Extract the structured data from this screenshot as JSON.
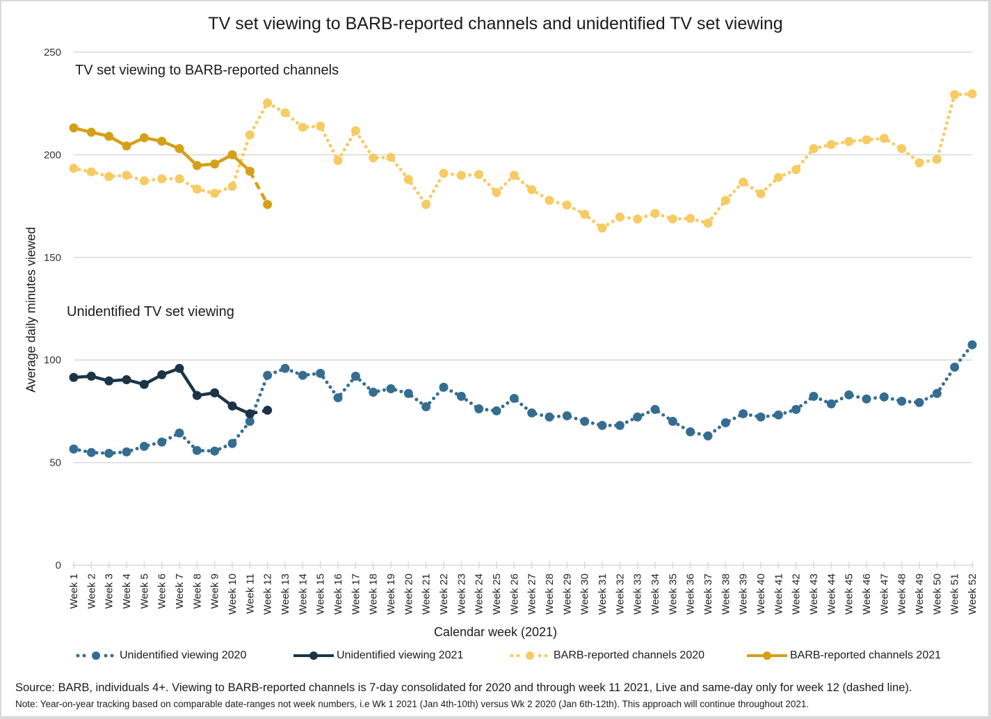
{
  "chart_data": {
    "type": "line",
    "title": "TV set viewing to BARB-reported channels and unidentified TV set viewing",
    "xlabel": "Calendar week (2021)",
    "ylabel": "Average daily minutes viewed",
    "ylim": [
      0,
      250
    ],
    "yticks": [
      0,
      50,
      100,
      150,
      200,
      250
    ],
    "grid": true,
    "legend_position": "bottom",
    "annotations": [
      {
        "text": "TV set viewing to BARB-reported channels",
        "near": "top-left"
      },
      {
        "text": "Unidentified TV set viewing",
        "near": "middle-left"
      }
    ],
    "categories": [
      "Week 1",
      "Week 2",
      "Week 3",
      "Week 4",
      "Week 5",
      "Week 6",
      "Week 7",
      "Week 8",
      "Week 9",
      "Week 10",
      "Week 11",
      "Week 12",
      "Week 13",
      "Week 14",
      "Week 15",
      "Week 16",
      "Week 17",
      "Week 18",
      "Week 19",
      "Week 20",
      "Week 21",
      "Week 22",
      "Week 23",
      "Week 24",
      "Week 25",
      "Week 26",
      "Week 27",
      "Week 28",
      "Week 29",
      "Week 30",
      "Week 31",
      "Week 32",
      "Week 33",
      "Week 34",
      "Week 35",
      "Week 36",
      "Week 37",
      "Week 38",
      "Week 39",
      "Week 40",
      "Week 41",
      "Week 42",
      "Week 43",
      "Week 44",
      "Week 45",
      "Week 46",
      "Week 47",
      "Week 48",
      "Week 49",
      "Week 50",
      "Week 51",
      "Week 52"
    ],
    "series": [
      {
        "name": "Unidentified viewing 2020",
        "color": "#356d91",
        "style": "dotted",
        "values": [
          56.6,
          54.9,
          54.5,
          55.2,
          57.9,
          60,
          64.4,
          55.9,
          55.6,
          59.3,
          70.1,
          92.5,
          95.9,
          92.5,
          93.5,
          81.6,
          92.1,
          84.3,
          86,
          83.7,
          77.2,
          86.7,
          82.3,
          76.2,
          75.2,
          81.3,
          74.2,
          72.2,
          72.8,
          70.1,
          68.1,
          68.1,
          72.2,
          75.9,
          70.1,
          65,
          63,
          69.4,
          73.8,
          72.2,
          73.2,
          75.9,
          82.3,
          78.6,
          83,
          81,
          82,
          79.9,
          79.3,
          83.7,
          96.5,
          107.4
        ]
      },
      {
        "name": "Unidentified viewing 2021",
        "color": "#1b3447",
        "style": "solid",
        "dashed_from_index": 10,
        "values": [
          91.5,
          92.1,
          89.8,
          90.4,
          88.1,
          92.8,
          95.9,
          82.7,
          84,
          77.6,
          73.8,
          75.5
        ]
      },
      {
        "name": "BARB-reported channels 2020",
        "color": "#f5cb62",
        "style": "dotted",
        "values": [
          193.4,
          191.7,
          189.4,
          190,
          187.3,
          188.3,
          188.3,
          183.3,
          181.2,
          184.6,
          209.7,
          225.3,
          220.5,
          213.4,
          214,
          197.2,
          211.7,
          198.5,
          198.8,
          188,
          175.8,
          191,
          190,
          190.4,
          181.6,
          190,
          183,
          177.8,
          175.5,
          171,
          164.3,
          169.7,
          168.7,
          171.4,
          168.7,
          169,
          166.7,
          177.8,
          186.7,
          181,
          189,
          192.8,
          203,
          205,
          206.5,
          207.3,
          208,
          203,
          196.1,
          197.8,
          229.3,
          229.7
        ]
      },
      {
        "name": "BARB-reported channels 2021",
        "color": "#d4a017",
        "style": "solid",
        "dashed_from_index": 10,
        "values": [
          213.1,
          211,
          209,
          204.3,
          208.3,
          206.6,
          203,
          194.8,
          195.5,
          200,
          192,
          175.8
        ]
      }
    ]
  },
  "footer": {
    "source": "Source: BARB, individuals 4+. Viewing to BARB-reported channels is 7-day consolidated for 2020 and through week 11 2021, Live and same-day only for week 12 (dashed line).",
    "note": "Note: Year-on-year tracking based on comparable date-ranges not week numbers, i.e Wk 1 2021 (Jan 4th-10th) versus Wk 2 2020 (Jan 6th-12th). This approach will continue throughout 2021."
  }
}
